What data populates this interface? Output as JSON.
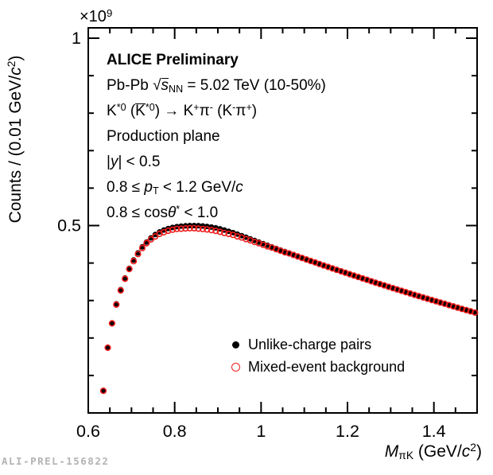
{
  "figure": {
    "watermark": "ALI-PREL-156822",
    "background_color": "#ffffff",
    "frame_color": "#000000"
  },
  "annotations": {
    "lines": [
      {
        "parts": [
          {
            "t": "ALICE Preliminary",
            "c": "b"
          }
        ]
      },
      {
        "parts": [
          {
            "t": "Pb-Pb "
          },
          {
            "t": "√"
          },
          {
            "t": "s",
            "c": "i ov"
          },
          {
            "t": "NN",
            "c": "sub"
          },
          {
            "t": " = 5.02 TeV (10-50%)"
          }
        ]
      },
      {
        "parts": [
          {
            "t": "K"
          },
          {
            "t": "*0",
            "c": "sup"
          },
          {
            "t": " ("
          },
          {
            "t": "K",
            "c": "ov"
          },
          {
            "t": "*0",
            "c": "sup"
          },
          {
            "t": ") → K"
          },
          {
            "t": "+",
            "c": "sup"
          },
          {
            "t": "π"
          },
          {
            "t": "-",
            "c": "sup"
          },
          {
            "t": " (K"
          },
          {
            "t": "-",
            "c": "sup"
          },
          {
            "t": "π"
          },
          {
            "t": "+",
            "c": "sup"
          },
          {
            "t": ")"
          }
        ]
      },
      {
        "parts": [
          {
            "t": "Production plane"
          }
        ]
      },
      {
        "parts": [
          {
            "t": "|"
          },
          {
            "t": "y",
            "c": "i"
          },
          {
            "t": "| < 0.5"
          }
        ]
      },
      {
        "parts": [
          {
            "t": "0.8 ≤ "
          },
          {
            "t": "p",
            "c": "i"
          },
          {
            "t": "T",
            "c": "sub"
          },
          {
            "t": " < 1.2 GeV/"
          },
          {
            "t": "c",
            "c": "i"
          }
        ]
      },
      {
        "parts": [
          {
            "t": "0.8 ≤ cos"
          },
          {
            "t": "θ",
            "c": "i"
          },
          {
            "t": "*",
            "c": "sup"
          },
          {
            "t": " < 1.0"
          }
        ]
      }
    ]
  },
  "legend": {
    "position": "inside-bottom-right",
    "entries": [
      {
        "marker": "filled-circle",
        "color": "#000000",
        "label": "Unlike-charge pairs"
      },
      {
        "marker": "open-circle",
        "color": "#ee1c1c",
        "label": "Mixed-event background"
      }
    ]
  },
  "axes": {
    "x": {
      "title_parts": [
        {
          "t": "M",
          "c": "i"
        },
        {
          "t": "πK",
          "c": "sub"
        },
        {
          "t": " (GeV/"
        },
        {
          "t": "c",
          "c": "i"
        },
        {
          "t": "2",
          "c": "sup"
        },
        {
          "t": ")"
        }
      ],
      "tick_values": [
        0.6,
        0.8,
        1.0,
        1.2,
        1.4
      ],
      "tick_labels": [
        "0.6",
        "0.8",
        "1",
        "1.2",
        "1.4"
      ],
      "minor_step": 0.05,
      "range": [
        0.6,
        1.5
      ]
    },
    "y": {
      "title_parts": [
        {
          "t": "Counts / (0.01 GeV/"
        },
        {
          "t": "c",
          "c": "i"
        },
        {
          "t": "2",
          "c": "sup"
        },
        {
          "t": ")"
        }
      ],
      "multiplier_parts": [
        {
          "t": "×10"
        },
        {
          "t": "9",
          "c": "sup"
        }
      ],
      "tick_values": [
        0.5,
        1.0
      ],
      "tick_labels": [
        "0.5",
        "1"
      ],
      "minor_step": 0.1,
      "range": [
        0,
        1.028
      ]
    }
  },
  "chart_data": {
    "type": "scatter",
    "title": "",
    "xlabel": "M_piK (GeV/c^2)",
    "ylabel": "Counts / (0.01 GeV/c^2)",
    "y_unit_multiplier": "1e9",
    "xlim": [
      0.6,
      1.5
    ],
    "ylim": [
      0,
      1.028
    ],
    "grid": false,
    "legend_position": "inside-bottom-right",
    "x_start": 0.635,
    "x_step": 0.01,
    "n_points": 87,
    "series": [
      {
        "name": "Unlike-charge pairs",
        "marker": "filled-circle",
        "color": "#000000",
        "values": [
          0.06,
          0.175,
          0.24,
          0.291,
          0.329,
          0.36,
          0.386,
          0.408,
          0.427,
          0.443,
          0.456,
          0.467,
          0.476,
          0.483,
          0.4882,
          0.4921,
          0.495,
          0.4971,
          0.4985,
          0.4994,
          0.4999,
          0.5,
          0.4997,
          0.4989,
          0.4977,
          0.496,
          0.4938,
          0.4912,
          0.4882,
          0.4848,
          0.4811,
          0.4772,
          0.4731,
          0.4689,
          0.4646,
          0.4602,
          0.4558,
          0.4516,
          0.4474,
          0.4432,
          0.439,
          0.4349,
          0.4307,
          0.4266,
          0.4225,
          0.4185,
          0.4144,
          0.4104,
          0.4064,
          0.4024,
          0.3984,
          0.3945,
          0.3905,
          0.3866,
          0.3827,
          0.3789,
          0.375,
          0.3712,
          0.3674,
          0.3636,
          0.3598,
          0.3561,
          0.3523,
          0.3486,
          0.3449,
          0.3413,
          0.3376,
          0.334,
          0.3304,
          0.3268,
          0.3232,
          0.3197,
          0.3161,
          0.3126,
          0.3091,
          0.3057,
          0.3022,
          0.2988,
          0.2954,
          0.292,
          0.2886,
          0.2853,
          0.2819,
          0.2786,
          0.2753,
          0.2721,
          0.2688
        ]
      },
      {
        "name": "Mixed-event background",
        "marker": "open-circle",
        "color": "#ee1c1c",
        "values": [
          0.059,
          0.174,
          0.239,
          0.289,
          0.327,
          0.358,
          0.384,
          0.405,
          0.424,
          0.44,
          0.453,
          0.463,
          0.471,
          0.478,
          0.4822,
          0.4861,
          0.489,
          0.4911,
          0.4915,
          0.4924,
          0.4929,
          0.493,
          0.4917,
          0.4909,
          0.4897,
          0.488,
          0.4858,
          0.4832,
          0.4802,
          0.4778,
          0.4751,
          0.4712,
          0.4681,
          0.4639,
          0.4606,
          0.4562,
          0.4528,
          0.4486,
          0.4444,
          0.4412,
          0.437,
          0.4329,
          0.4287,
          0.4256,
          0.4215,
          0.4175,
          0.4134,
          0.4094,
          0.4054,
          0.4014,
          0.3974,
          0.3935,
          0.3895,
          0.3856,
          0.3817,
          0.3779,
          0.374,
          0.3702,
          0.3664,
          0.3626,
          0.3588,
          0.3551,
          0.3513,
          0.3476,
          0.3439,
          0.3403,
          0.3366,
          0.333,
          0.3294,
          0.3258,
          0.3222,
          0.3187,
          0.3151,
          0.3116,
          0.3081,
          0.3047,
          0.3012,
          0.2978,
          0.2944,
          0.291,
          0.2876,
          0.2843,
          0.2809,
          0.2776,
          0.2743,
          0.2711,
          0.2678
        ]
      }
    ]
  }
}
